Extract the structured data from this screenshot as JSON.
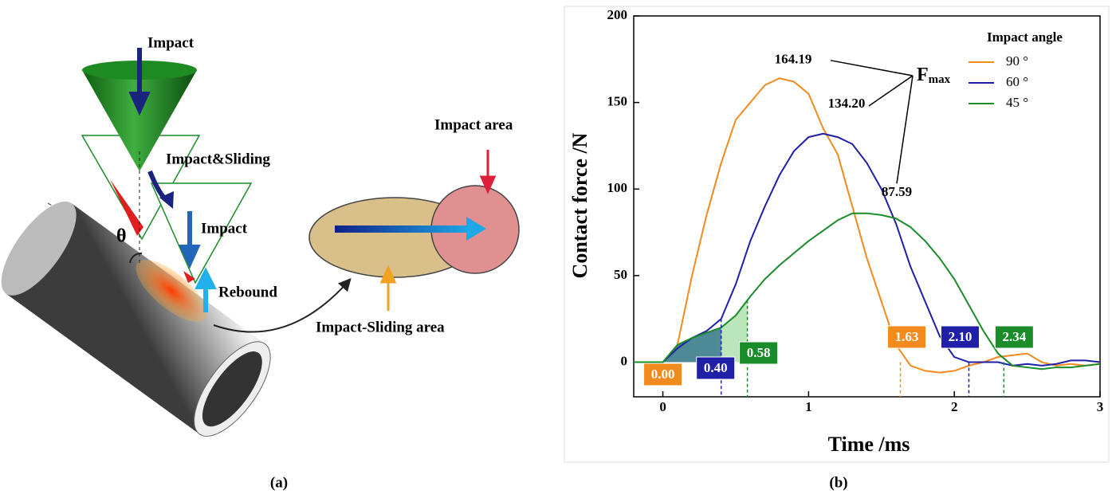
{
  "diagram": {
    "labels": [
      "Impact",
      "Impact&Sliding",
      "Impact",
      "Rebound",
      "θ",
      "Impact area",
      "Impact-Sliding area"
    ],
    "caption": "(a)"
  },
  "chart_data": {
    "type": "line",
    "caption": "(b)",
    "xlabel": "Time /ms",
    "ylabel": "Contact force /N",
    "xlim": [
      -0.2,
      3
    ],
    "ylim": [
      -20,
      200
    ],
    "xticks": [
      0,
      1,
      2,
      3
    ],
    "yticks": [
      0,
      50,
      100,
      150,
      200
    ],
    "legend_title": "Impact angle",
    "legend": "upper right",
    "fmax": {
      "text": "F",
      "subscript": "max"
    },
    "x": [
      -0.2,
      -0.1,
      0,
      0.1,
      0.2,
      0.3,
      0.4,
      0.5,
      0.6,
      0.7,
      0.8,
      0.9,
      1.0,
      1.1,
      1.2,
      1.3,
      1.4,
      1.5,
      1.6,
      1.7,
      1.8,
      1.9,
      2.0,
      2.1,
      2.2,
      2.3,
      2.4,
      2.5,
      2.6,
      2.7,
      2.8,
      2.9,
      3.0
    ],
    "series": [
      {
        "name": "90 °",
        "color": "#f28a1e",
        "values": [
          0,
          0,
          0,
          10,
          50,
          85,
          115,
          140,
          150,
          160,
          164,
          162,
          155,
          135,
          120,
          90,
          60,
          35,
          10,
          -2,
          -5,
          -6,
          -5,
          -2,
          0,
          3,
          4,
          5,
          0,
          -2,
          -1,
          -2,
          -1
        ],
        "peak": 164.19,
        "peak_label": "164.19",
        "start": 0,
        "start_label": "0.00",
        "end": 1.63,
        "end_label": "1.63"
      },
      {
        "name": "60 °",
        "color": "#1f1fa8",
        "values": [
          0,
          0,
          0,
          8,
          14,
          18,
          25,
          45,
          70,
          90,
          108,
          122,
          130,
          132,
          130,
          126,
          115,
          100,
          80,
          55,
          35,
          15,
          3,
          0,
          0,
          0,
          -2,
          -1,
          -2,
          -1,
          1,
          1,
          0
        ],
        "peak": 134.2,
        "peak_label": "134.20",
        "start": 0.4,
        "start_label": "0.40",
        "end": 2.1,
        "end_label": "2.10"
      },
      {
        "name": "45 °",
        "color": "#1a8c2a",
        "values": [
          0,
          0,
          0,
          10,
          14,
          17,
          20,
          27,
          38,
          48,
          56,
          63,
          70,
          76,
          82,
          86,
          86,
          85,
          83,
          78,
          70,
          60,
          48,
          33,
          18,
          5,
          -2,
          -3,
          -4,
          -3,
          -3,
          -2,
          -1
        ],
        "peak": 87.59,
        "peak_label": "87.59",
        "start": 0.58,
        "start_label": "0.58",
        "end": 2.34,
        "end_label": "2.34"
      }
    ]
  }
}
